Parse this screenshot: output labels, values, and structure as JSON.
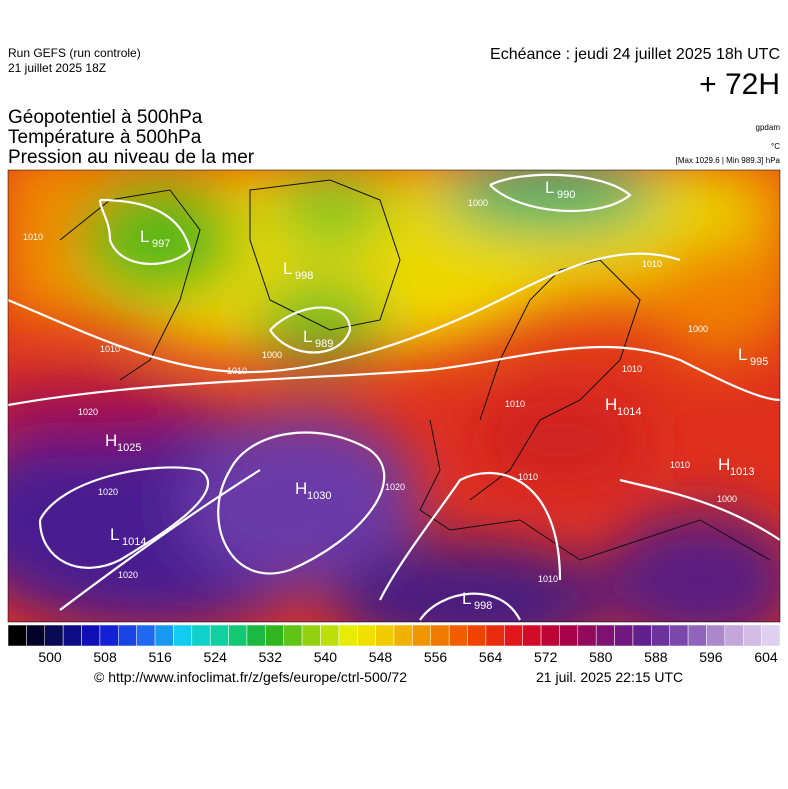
{
  "header": {
    "run": "Run GEFS (run controle)",
    "run_date": "21 juillet 2025 18Z",
    "valid": "Echéance : jeudi 24 juillet 2025 18h UTC",
    "lead": "+ 72H",
    "fields": [
      "Géopotentiel à 500hPa",
      "Température à 500hPa",
      "Pression au niveau de la mer"
    ],
    "units": [
      "gpdam",
      "°C",
      "[Max 1029.6 | Min 989.3] hPa"
    ]
  },
  "map": {
    "centers": [
      {
        "type": "L",
        "value": 997
      },
      {
        "type": "L",
        "value": 998
      },
      {
        "type": "L",
        "value": 989
      },
      {
        "type": "L",
        "value": 990
      },
      {
        "type": "L",
        "value": 995
      },
      {
        "type": "H",
        "value": 1014
      },
      {
        "type": "H",
        "value": 1013
      },
      {
        "type": "H",
        "value": 1025
      },
      {
        "type": "H",
        "value": 1030
      },
      {
        "type": "L",
        "value": 1014
      },
      {
        "type": "L",
        "value": 998
      }
    ],
    "isobar_labels": [
      1010,
      1010,
      1010,
      1020,
      1000,
      1020,
      1020,
      1020,
      1010,
      1010,
      1000,
      1010,
      1000,
      1010,
      1000,
      1010,
      1010
    ]
  },
  "colorbar": {
    "ticks": [
      500,
      508,
      516,
      524,
      532,
      540,
      548,
      556,
      564,
      572,
      580,
      588,
      596,
      604
    ]
  },
  "footer": {
    "source": "© http://www.infoclimat.fr/z/gefs/europe/ctrl-500/72",
    "generated": "21 juil. 2025 22:15 UTC"
  }
}
